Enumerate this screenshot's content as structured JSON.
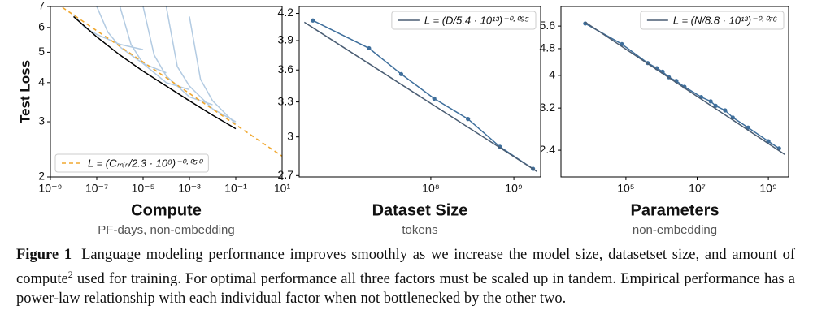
{
  "chart_data": [
    {
      "type": "line",
      "xlabel": "Compute",
      "subtitle": "PF-days, non-embedding",
      "ylabel": "Test Loss",
      "xscale": "log",
      "yscale": "log",
      "xlim": [
        1e-09,
        10
      ],
      "ylim": [
        2,
        7
      ],
      "xticks": [
        {
          "value": 1e-09,
          "label": "10⁻⁹"
        },
        {
          "value": 1e-07,
          "label": "10⁻⁷"
        },
        {
          "value": 1e-05,
          "label": "10⁻⁵"
        },
        {
          "value": 0.001,
          "label": "10⁻³"
        },
        {
          "value": 0.1,
          "label": "10⁻¹"
        },
        {
          "value": 10,
          "label": "10¹"
        }
      ],
      "yticks": [
        2,
        3,
        4,
        5,
        6,
        7
      ],
      "legend": "lower left",
      "series": [
        {
          "color": "#b3cbe2",
          "x": [
            1e-08,
            3e-08,
            1e-07,
            1e-06,
            1e-05
          ],
          "values": [
            6.6,
            6.0,
            5.7,
            5.3,
            5.1
          ]
        },
        {
          "color": "#b3cbe2",
          "x": [
            1e-07,
            3e-07,
            1e-06,
            1e-05,
            0.0001
          ],
          "values": [
            7,
            5.8,
            5.2,
            4.6,
            4.3
          ]
        },
        {
          "color": "#b3cbe2",
          "x": [
            1e-06,
            3e-06,
            1e-05,
            0.0001,
            0.001
          ],
          "values": [
            7,
            5.3,
            4.6,
            4.0,
            3.8
          ]
        },
        {
          "color": "#b3cbe2",
          "x": [
            1e-05,
            3e-05,
            0.0001,
            0.001,
            0.01
          ],
          "values": [
            7,
            4.9,
            4.2,
            3.6,
            3.4
          ]
        },
        {
          "color": "#b3cbe2",
          "x": [
            0.0001,
            0.0003,
            0.001,
            0.01,
            0.1
          ],
          "values": [
            7,
            4.5,
            3.9,
            3.3,
            3.0
          ]
        },
        {
          "color": "#b3cbe2",
          "x": [
            0.001,
            0.003,
            0.01,
            0.1
          ],
          "values": [
            6.5,
            4.1,
            3.5,
            2.95
          ]
        },
        {
          "color": "#000000",
          "x": [
            1e-08,
            1e-07,
            1e-06,
            1e-05,
            0.0001,
            0.001,
            0.01,
            0.1
          ],
          "values": [
            6.5,
            5.6,
            4.9,
            4.35,
            3.9,
            3.5,
            3.15,
            2.85
          ]
        },
        {
          "name": "L = (Cₘᵢₙ/2.3 · 10⁸)⁻⁰·⁰⁵⁰",
          "color": "#f0a830",
          "style": "dashed",
          "x": [
            1e-09,
            10
          ],
          "values": [
            7.38,
            2.33
          ]
        }
      ]
    },
    {
      "type": "line",
      "xlabel": "Dataset Size",
      "subtitle": "tokens",
      "xscale": "log",
      "yscale": "log",
      "xlim": [
        2600000.0,
        2100000000.0
      ],
      "ylim": [
        2.69,
        4.28
      ],
      "xticks": [
        {
          "value": 100000000.0,
          "label": "10⁸"
        },
        {
          "value": 1000000000.0,
          "label": "10⁹"
        }
      ],
      "yticks": [
        2.7,
        3.0,
        3.3,
        3.6,
        3.9,
        4.2
      ],
      "legend": "upper right",
      "series": [
        {
          "color": "#3f6f9c",
          "markers": true,
          "x": [
            3800000.0,
            18000000.0,
            44000000.0,
            110000000.0,
            280000000.0,
            680000000.0,
            1700000000.0
          ],
          "values": [
            4.12,
            3.82,
            3.56,
            3.33,
            3.15,
            2.92,
            2.75
          ]
        },
        {
          "name": "L = (D/5.4 · 10¹³)⁻⁰·⁰⁹⁵",
          "color": "#4a5d73",
          "x": [
            3000000.0,
            1900000000.0
          ],
          "values": [
            4.1,
            2.73
          ]
        }
      ]
    },
    {
      "type": "line",
      "xlabel": "Parameters",
      "subtitle": "non-embedding",
      "xscale": "log",
      "yscale": "log",
      "xlim": [
        1500.0,
        3700000000.0
      ],
      "ylim": [
        2.0,
        6.4
      ],
      "xticks": [
        {
          "value": 100000.0,
          "label": "10⁵"
        },
        {
          "value": 10000000.0,
          "label": "10⁷"
        },
        {
          "value": 1000000000.0,
          "label": "10⁹"
        }
      ],
      "yticks": [
        2.4,
        3.2,
        4.0,
        4.8,
        5.6
      ],
      "legend": "upper right",
      "series": [
        {
          "color": "#3f6f9c",
          "markers": true,
          "x": [
            7200.0,
            77000.0,
            410000.0,
            740000.0,
            1070000.0,
            1600000.0,
            2600000.0,
            4400000.0,
            13000000.0,
            24000000.0,
            33000000.0,
            61000000.0,
            100000000.0,
            270000000.0,
            1000000000.0,
            2000000000.0
          ],
          "values": [
            5.7,
            4.95,
            4.35,
            4.2,
            4.1,
            3.95,
            3.85,
            3.7,
            3.45,
            3.35,
            3.25,
            3.15,
            3.0,
            2.8,
            2.55,
            2.43
          ]
        },
        {
          "name": "L = (N/8.8 · 10¹³)⁻⁰·⁰⁷⁶",
          "color": "#4a5d73",
          "x": [
            7200.0,
            2900000000.0
          ],
          "values": [
            5.75,
            2.33
          ]
        }
      ]
    }
  ],
  "caption": {
    "label": "Figure 1",
    "text": "Language modeling performance improves smoothly as we increase the model size, datasetset size, and amount of compute",
    "footnote": "2",
    "text_end": " used for training. For optimal performance all three factors must be scaled up in tandem. Empirical performance has a power-law relationship with each individual factor when not bottlenecked by the other two."
  }
}
